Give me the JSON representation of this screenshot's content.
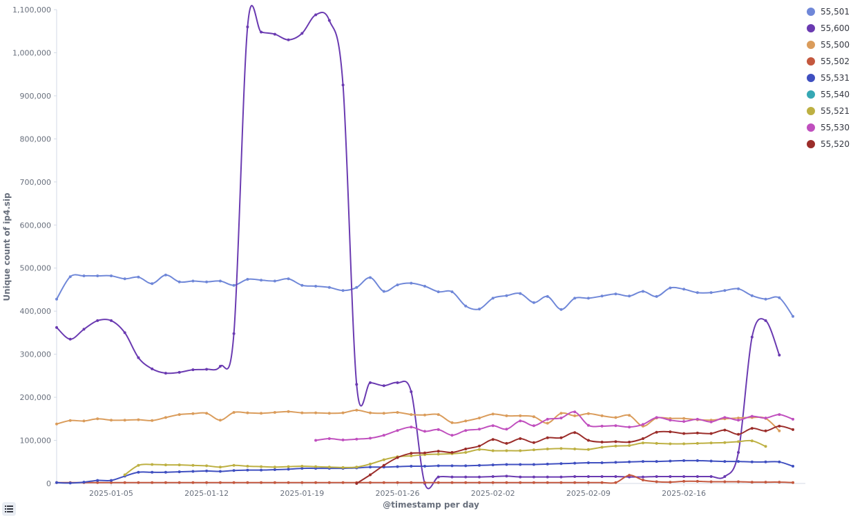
{
  "toggle_icon": "list-icon",
  "chart_data": {
    "type": "line",
    "xlabel": "@timestamp per day",
    "ylabel": "Unique count of ip4.sip",
    "ylim": [
      0,
      1100000
    ],
    "y_ticks": [
      0,
      100000,
      200000,
      300000,
      400000,
      500000,
      600000,
      700000,
      800000,
      900000,
      1000000,
      1100000
    ],
    "y_tick_labels": [
      "0",
      "100,000",
      "200,000",
      "300,000",
      "400,000",
      "500,000",
      "600,000",
      "700,000",
      "800,000",
      "900,000",
      "1,000,000",
      "1,100,000"
    ],
    "x_start": "2025-01-01",
    "x_tick_labels": [
      "2025-01-05",
      "2025-01-12",
      "2025-01-19",
      "2025-01-26",
      "2025-02-02",
      "2025-02-09",
      "2025-02-16"
    ],
    "x_tick_index": [
      4,
      11,
      18,
      25,
      32,
      39,
      46
    ],
    "legend_position": "right",
    "grid": false,
    "series": [
      {
        "name": "55,501",
        "color": "#6f87d8",
        "values": [
          428000,
          480000,
          482000,
          482000,
          482000,
          475000,
          479000,
          464000,
          484000,
          468000,
          470000,
          468000,
          470000,
          460000,
          474000,
          472000,
          470000,
          475000,
          460000,
          458000,
          455000,
          448000,
          455000,
          478000,
          446000,
          461000,
          465000,
          458000,
          445000,
          445000,
          412000,
          405000,
          430000,
          436000,
          441000,
          420000,
          434000,
          404000,
          430000,
          430000,
          435000,
          440000,
          435000,
          446000,
          434000,
          454000,
          451000,
          443000,
          443000,
          448000,
          452000,
          436000,
          428000,
          431000,
          388000
        ]
      },
      {
        "name": "55,600",
        "color": "#6a3ab1",
        "values": [
          362000,
          335000,
          358000,
          378000,
          378000,
          350000,
          292000,
          266000,
          256000,
          258000,
          264000,
          265000,
          272000,
          348000,
          1060000,
          1048000,
          1043000,
          1030000,
          1045000,
          1088000,
          1075000,
          925000,
          230000,
          234000,
          227000,
          234000,
          213000,
          0,
          15000,
          15000,
          15000,
          15000,
          16000,
          17000,
          15000,
          15000,
          15000,
          15000,
          16000,
          16000,
          16000,
          16000,
          15000,
          15000,
          16000,
          16000,
          16000,
          16000,
          16000,
          16000,
          72000,
          340000,
          378000,
          298000
        ]
      },
      {
        "name": "55,500",
        "color": "#da9c5b",
        "values": [
          138000,
          146000,
          145000,
          150000,
          147000,
          147000,
          148000,
          146000,
          153000,
          160000,
          162000,
          163000,
          147000,
          165000,
          164000,
          163000,
          165000,
          167000,
          164000,
          164000,
          163000,
          164000,
          170000,
          164000,
          163000,
          165000,
          160000,
          159000,
          160000,
          141000,
          145000,
          152000,
          161000,
          157000,
          157000,
          155000,
          140000,
          163000,
          157000,
          162000,
          157000,
          153000,
          158000,
          133000,
          152000,
          151000,
          151000,
          148000,
          147000,
          150000,
          152000,
          153000,
          151000,
          122000
        ]
      },
      {
        "name": "55,502",
        "color": "#c4583e",
        "values": [
          2000,
          2000,
          2000,
          2000,
          2000,
          2000,
          2000,
          2000,
          2000,
          2000,
          2000,
          2000,
          2000,
          2000,
          2000,
          2000,
          2000,
          2000,
          2000,
          2000,
          2000,
          2000,
          2000,
          2000,
          2000,
          2000,
          2000,
          2000,
          2000,
          2000,
          2000,
          2000,
          2000,
          2000,
          2000,
          2000,
          2000,
          2000,
          2000,
          2000,
          2000,
          2000,
          19000,
          8000,
          4000,
          3000,
          5000,
          5000,
          4000,
          4000,
          4000,
          3000,
          3000,
          3000,
          2000
        ]
      },
      {
        "name": "55,531",
        "color": "#3f4fc0",
        "values": [
          2000,
          1000,
          3000,
          7000,
          7000,
          17000,
          26000,
          26000,
          26000,
          27000,
          28000,
          29000,
          28000,
          30000,
          31000,
          31000,
          32000,
          33000,
          35000,
          35000,
          35000,
          35000,
          36000,
          38000,
          38000,
          39000,
          40000,
          40000,
          41000,
          41000,
          41000,
          42000,
          43000,
          44000,
          44000,
          44000,
          45000,
          46000,
          47000,
          48000,
          48000,
          49000,
          50000,
          51000,
          51000,
          52000,
          53000,
          53000,
          52000,
          51000,
          51000,
          50000,
          50000,
          50000,
          40000
        ]
      },
      {
        "name": "55,521",
        "color": "#bdb042",
        "values": [
          null,
          null,
          null,
          null,
          null,
          20000,
          42000,
          44000,
          43000,
          43000,
          42000,
          41000,
          38000,
          42000,
          40000,
          39000,
          38000,
          39000,
          40000,
          39000,
          38000,
          37000,
          38000,
          45000,
          55000,
          62000,
          64000,
          67000,
          68000,
          69000,
          72000,
          79000,
          76000,
          76000,
          76000,
          78000,
          80000,
          81000,
          80000,
          79000,
          84000,
          87000,
          88000,
          94000,
          93000,
          92000,
          92000,
          93000,
          94000,
          95000,
          97000,
          99000,
          86000
        ]
      },
      {
        "name": "55,530",
        "color": "#c04fbe",
        "values": [
          null,
          null,
          null,
          null,
          null,
          null,
          null,
          null,
          null,
          null,
          null,
          null,
          null,
          null,
          null,
          null,
          null,
          null,
          null,
          100000,
          104000,
          101000,
          103000,
          105000,
          112000,
          123000,
          131000,
          121000,
          125000,
          112000,
          123000,
          126000,
          134000,
          126000,
          145000,
          134000,
          149000,
          152000,
          166000,
          135000,
          133000,
          134000,
          131000,
          137000,
          153000,
          147000,
          144000,
          149000,
          143000,
          153000,
          147000,
          156000,
          152000,
          160000,
          149000
        ]
      },
      {
        "name": "55,520",
        "color": "#9b2d2a",
        "values": [
          null,
          null,
          null,
          null,
          null,
          null,
          null,
          null,
          null,
          null,
          null,
          null,
          null,
          null,
          null,
          null,
          null,
          null,
          null,
          null,
          null,
          null,
          0,
          20000,
          42000,
          60000,
          70000,
          71000,
          75000,
          72000,
          80000,
          87000,
          102000,
          93000,
          104000,
          95000,
          106000,
          106000,
          118000,
          100000,
          96000,
          97000,
          96000,
          104000,
          119000,
          120000,
          116000,
          117000,
          116000,
          124000,
          114000,
          128000,
          122000,
          133000,
          125000
        ]
      }
    ],
    "legend_entries": [
      {
        "name": "55,501",
        "color": "#6f87d8"
      },
      {
        "name": "55,600",
        "color": "#6a3ab1"
      },
      {
        "name": "55,500",
        "color": "#da9c5b"
      },
      {
        "name": "55,502",
        "color": "#c4583e"
      },
      {
        "name": "55,531",
        "color": "#3f4fc0"
      },
      {
        "name": "55,540",
        "color": "#36a8b4"
      },
      {
        "name": "55,521",
        "color": "#bdb042"
      },
      {
        "name": "55,530",
        "color": "#c04fbe"
      },
      {
        "name": "55,520",
        "color": "#9b2d2a"
      }
    ]
  }
}
